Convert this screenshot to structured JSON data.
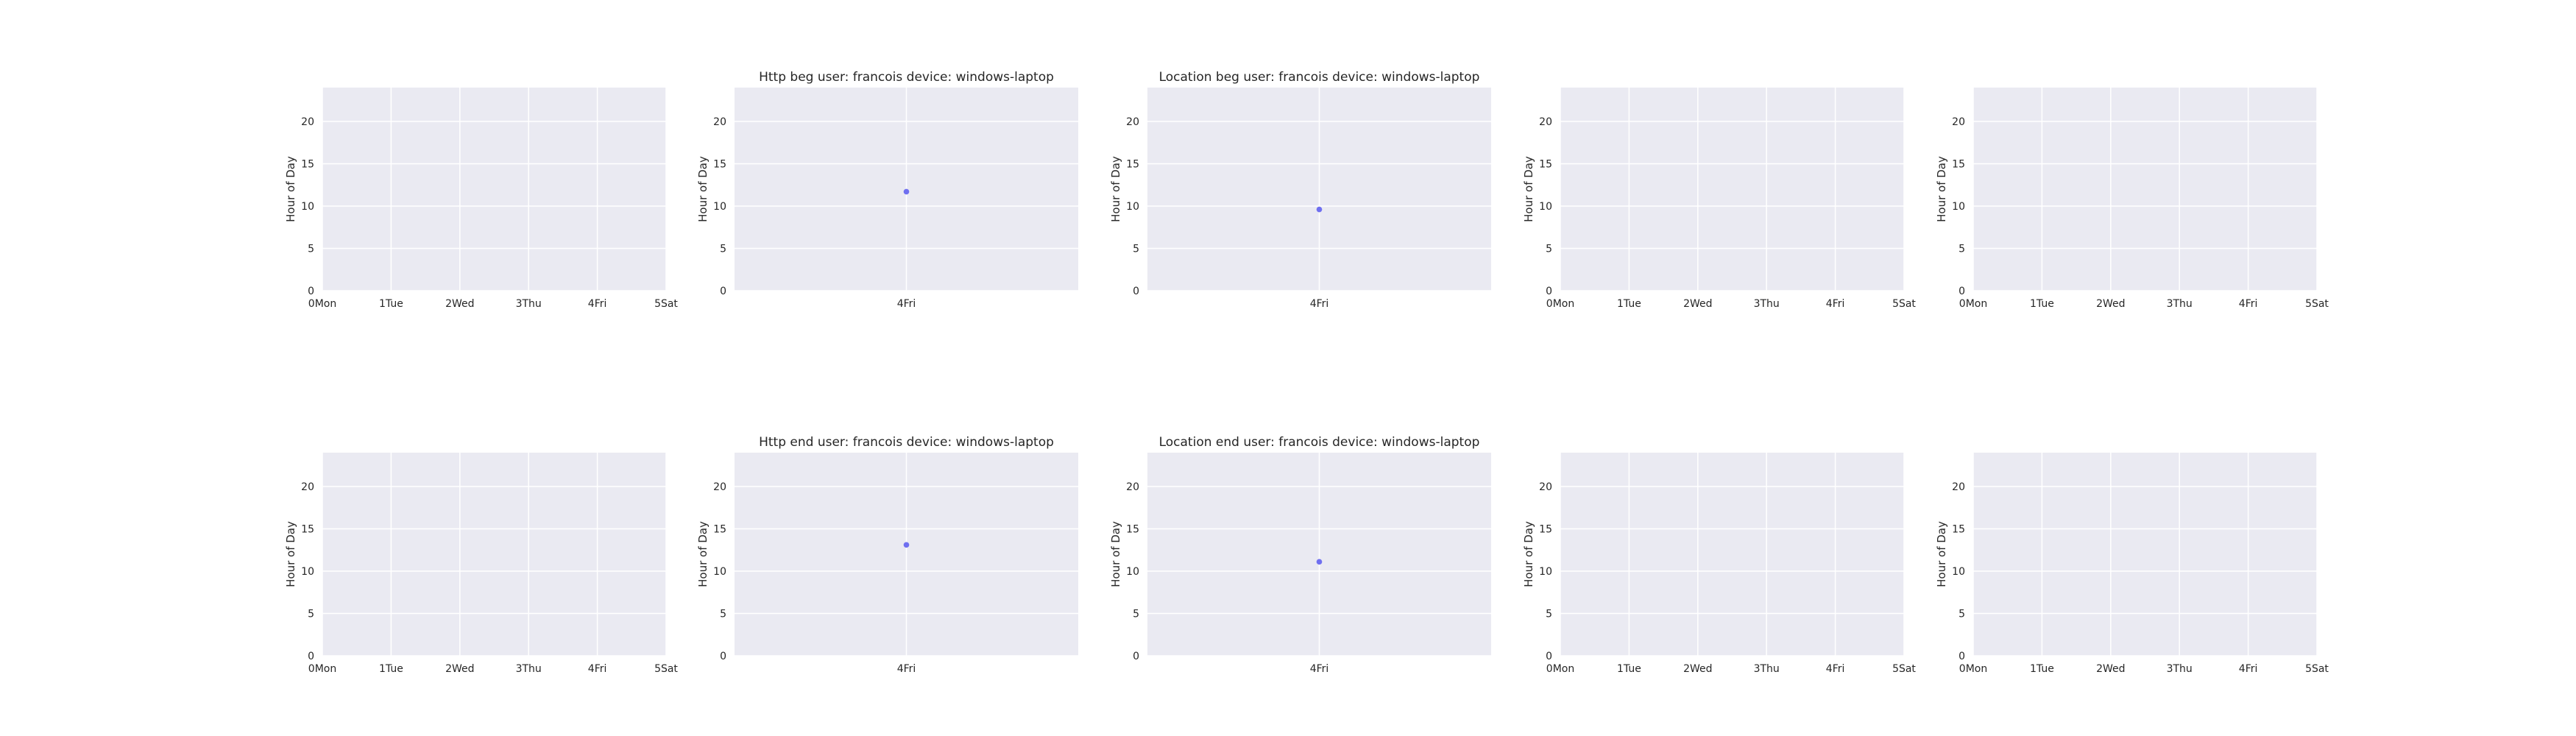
{
  "chart_data": [
    {
      "type": "scatter",
      "title": "",
      "xlabel": "",
      "ylabel": "Hour of Day",
      "x_ticks": [
        "0Mon",
        "1Tue",
        "2Wed",
        "3Thu",
        "4Fri",
        "5Sat"
      ],
      "xlim": [
        0,
        5
      ],
      "y_ticks": [
        "0",
        "5",
        "10",
        "15",
        "20"
      ],
      "ylim": [
        0,
        24
      ],
      "grid": true,
      "points": []
    },
    {
      "type": "scatter",
      "title": "Http beg user: francois device: windows-laptop",
      "xlabel": "",
      "ylabel": "Hour of Day",
      "x_ticks": [
        "4Fri"
      ],
      "xlim": [
        3.5,
        4.5
      ],
      "y_ticks": [
        "0",
        "5",
        "10",
        "15",
        "20"
      ],
      "ylim": [
        0,
        24
      ],
      "grid": true,
      "points": [
        {
          "x": 4,
          "y": 11.7
        }
      ]
    },
    {
      "type": "scatter",
      "title": "Location beg user: francois device: windows-laptop",
      "xlabel": "",
      "ylabel": "Hour of Day",
      "x_ticks": [
        "4Fri"
      ],
      "xlim": [
        3.5,
        4.5
      ],
      "y_ticks": [
        "0",
        "5",
        "10",
        "15",
        "20"
      ],
      "ylim": [
        0,
        24
      ],
      "grid": true,
      "points": [
        {
          "x": 4,
          "y": 9.6
        }
      ]
    },
    {
      "type": "scatter",
      "title": "",
      "xlabel": "",
      "ylabel": "Hour of Day",
      "x_ticks": [
        "0Mon",
        "1Tue",
        "2Wed",
        "3Thu",
        "4Fri",
        "5Sat"
      ],
      "xlim": [
        0,
        5
      ],
      "y_ticks": [
        "0",
        "5",
        "10",
        "15",
        "20"
      ],
      "ylim": [
        0,
        24
      ],
      "grid": true,
      "points": []
    },
    {
      "type": "scatter",
      "title": "",
      "xlabel": "",
      "ylabel": "Hour of Day",
      "x_ticks": [
        "0Mon",
        "1Tue",
        "2Wed",
        "3Thu",
        "4Fri",
        "5Sat"
      ],
      "xlim": [
        0,
        5
      ],
      "y_ticks": [
        "0",
        "5",
        "10",
        "15",
        "20"
      ],
      "ylim": [
        0,
        24
      ],
      "grid": true,
      "points": []
    },
    {
      "type": "scatter",
      "title": "",
      "xlabel": "",
      "ylabel": "Hour of Day",
      "x_ticks": [
        "0Mon",
        "1Tue",
        "2Wed",
        "3Thu",
        "4Fri",
        "5Sat"
      ],
      "xlim": [
        0,
        5
      ],
      "y_ticks": [
        "0",
        "5",
        "10",
        "15",
        "20"
      ],
      "ylim": [
        0,
        24
      ],
      "grid": true,
      "points": []
    },
    {
      "type": "scatter",
      "title": "Http end user: francois device: windows-laptop",
      "xlabel": "",
      "ylabel": "Hour of Day",
      "x_ticks": [
        "4Fri"
      ],
      "xlim": [
        3.5,
        4.5
      ],
      "y_ticks": [
        "0",
        "5",
        "10",
        "15",
        "20"
      ],
      "ylim": [
        0,
        24
      ],
      "grid": true,
      "points": [
        {
          "x": 4,
          "y": 13.1
        }
      ]
    },
    {
      "type": "scatter",
      "title": "Location end user: francois device: windows-laptop",
      "xlabel": "",
      "ylabel": "Hour of Day",
      "x_ticks": [
        "4Fri"
      ],
      "xlim": [
        3.5,
        4.5
      ],
      "y_ticks": [
        "0",
        "5",
        "10",
        "15",
        "20"
      ],
      "ylim": [
        0,
        24
      ],
      "grid": true,
      "points": [
        {
          "x": 4,
          "y": 11.1
        }
      ]
    },
    {
      "type": "scatter",
      "title": "",
      "xlabel": "",
      "ylabel": "Hour of Day",
      "x_ticks": [
        "0Mon",
        "1Tue",
        "2Wed",
        "3Thu",
        "4Fri",
        "5Sat"
      ],
      "xlim": [
        0,
        5
      ],
      "y_ticks": [
        "0",
        "5",
        "10",
        "15",
        "20"
      ],
      "ylim": [
        0,
        24
      ],
      "grid": true,
      "points": []
    },
    {
      "type": "scatter",
      "title": "",
      "xlabel": "",
      "ylabel": "Hour of Day",
      "x_ticks": [
        "0Mon",
        "1Tue",
        "2Wed",
        "3Thu",
        "4Fri",
        "5Sat"
      ],
      "xlim": [
        0,
        5
      ],
      "y_ticks": [
        "0",
        "5",
        "10",
        "15",
        "20"
      ],
      "ylim": [
        0,
        24
      ],
      "grid": true,
      "points": []
    }
  ],
  "colors": {
    "axes_face": "#eaeaf2",
    "grid": "#ffffff",
    "marker": "#6f6ff0",
    "text": "#262626"
  }
}
